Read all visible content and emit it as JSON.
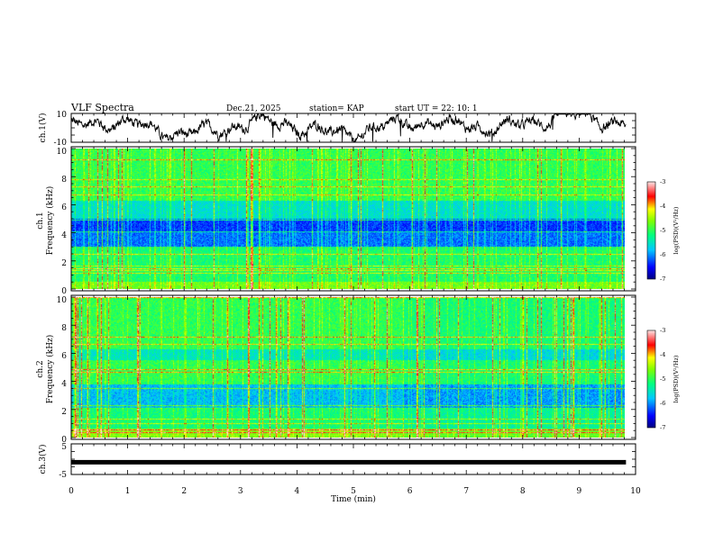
{
  "header": {
    "title": "VLF Spectra",
    "date": "Dec.21, 2025",
    "station": "station= KAP",
    "start": "start  UT  =   22: 10: 1"
  },
  "chart_data": {
    "type": "heatmap",
    "xlabel": "Time  (min)",
    "xlim": [
      0,
      10
    ],
    "xticks": [
      "0",
      "1",
      "2",
      "3",
      "4",
      "5",
      "6",
      "7",
      "8",
      "9",
      "10"
    ],
    "panels": [
      {
        "name": "ch1-waveform",
        "type": "line",
        "ylabel": "ch.1(V)",
        "ylim": [
          -10,
          10
        ],
        "yticks": [
          "10",
          "-10"
        ]
      },
      {
        "name": "ch1-spectrogram",
        "type": "heatmap",
        "ylabel_top": "ch.1",
        "ylabel": "Frequency  (kHz)",
        "ylim": [
          0,
          10
        ],
        "yticks": [
          "0",
          "2",
          "4",
          "6",
          "8",
          "10"
        ],
        "colorbar": {
          "label": "log(PSD)(V²/Hz)",
          "range": [
            -7,
            -3
          ],
          "ticks": [
            "-3",
            "-4",
            "-5",
            "-6",
            "-7"
          ]
        }
      },
      {
        "name": "ch2-spectrogram",
        "type": "heatmap",
        "ylabel_top": "ch.2",
        "ylabel": "Frequency  (kHz)",
        "ylim": [
          0,
          10
        ],
        "yticks": [
          "0",
          "2",
          "4",
          "6",
          "8",
          "10"
        ],
        "colorbar": {
          "label": "log(PSD)(V²/Hz)",
          "range": [
            -7,
            -3
          ],
          "ticks": [
            "-3",
            "-4",
            "-5",
            "-6",
            "-7"
          ]
        }
      },
      {
        "name": "ch3-waveform",
        "type": "line",
        "ylabel": "ch.3(V)",
        "ylim": [
          -5,
          5
        ],
        "yticks": [
          "5",
          "-5"
        ],
        "level": -1
      }
    ],
    "time_end_min": 9.83
  }
}
